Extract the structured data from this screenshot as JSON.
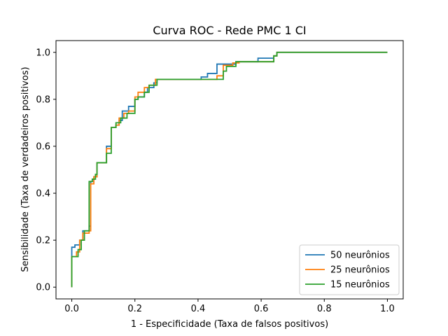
{
  "chart_data": {
    "type": "line",
    "title": "Curva ROC - Rede PMC 1 CI",
    "xlabel": "1 - Especificidade (Taxa de falsos positivos)",
    "ylabel": "Sensibilidade (Taxa de verdadeiros positivos)",
    "xlim": [
      -0.05,
      1.05
    ],
    "ylim": [
      -0.05,
      1.05
    ],
    "xticks": [
      "0.0",
      "0.2",
      "0.4",
      "0.6",
      "0.8",
      "1.0"
    ],
    "yticks": [
      "0.0",
      "0.2",
      "0.4",
      "0.6",
      "0.8",
      "1.0"
    ],
    "grid": false,
    "legend_position": "lower-right",
    "series": [
      {
        "name": "50 neurônios",
        "color": "#1f77b4",
        "x": [
          0.0,
          0.0,
          0.0,
          0.01,
          0.01,
          0.025,
          0.025,
          0.035,
          0.035,
          0.055,
          0.055,
          0.06,
          0.06,
          0.07,
          0.07,
          0.08,
          0.08,
          0.11,
          0.11,
          0.125,
          0.125,
          0.14,
          0.14,
          0.15,
          0.15,
          0.16,
          0.16,
          0.18,
          0.18,
          0.2,
          0.2,
          0.21,
          0.21,
          0.23,
          0.23,
          0.24,
          0.24,
          0.26,
          0.26,
          0.27,
          0.27,
          0.41,
          0.41,
          0.43,
          0.43,
          0.46,
          0.46,
          0.52,
          0.52,
          0.59,
          0.59,
          0.64,
          0.64,
          0.65,
          0.65,
          1.0
        ],
        "y": [
          0.0,
          0.13,
          0.17,
          0.17,
          0.18,
          0.18,
          0.2,
          0.2,
          0.24,
          0.24,
          0.26,
          0.26,
          0.45,
          0.45,
          0.47,
          0.47,
          0.53,
          0.53,
          0.6,
          0.6,
          0.68,
          0.68,
          0.69,
          0.69,
          0.71,
          0.71,
          0.75,
          0.75,
          0.77,
          0.77,
          0.8,
          0.8,
          0.81,
          0.81,
          0.83,
          0.83,
          0.85,
          0.85,
          0.87,
          0.87,
          0.885,
          0.885,
          0.895,
          0.895,
          0.91,
          0.91,
          0.95,
          0.95,
          0.96,
          0.96,
          0.975,
          0.975,
          0.985,
          0.985,
          1.0,
          1.0
        ]
      },
      {
        "name": "25 neurônios",
        "color": "#ff7f0e",
        "x": [
          0.0,
          0.0,
          0.015,
          0.015,
          0.025,
          0.025,
          0.035,
          0.035,
          0.055,
          0.055,
          0.06,
          0.06,
          0.07,
          0.07,
          0.08,
          0.08,
          0.11,
          0.11,
          0.125,
          0.125,
          0.14,
          0.14,
          0.15,
          0.15,
          0.165,
          0.165,
          0.18,
          0.18,
          0.2,
          0.2,
          0.21,
          0.21,
          0.23,
          0.23,
          0.245,
          0.245,
          0.265,
          0.265,
          0.275,
          0.275,
          0.46,
          0.46,
          0.48,
          0.48,
          0.51,
          0.51,
          0.53,
          0.53,
          0.64,
          0.64,
          0.65,
          0.65,
          1.0
        ],
        "y": [
          0.0,
          0.13,
          0.13,
          0.15,
          0.15,
          0.2,
          0.2,
          0.23,
          0.23,
          0.24,
          0.24,
          0.44,
          0.44,
          0.47,
          0.47,
          0.53,
          0.53,
          0.59,
          0.59,
          0.68,
          0.68,
          0.69,
          0.69,
          0.72,
          0.72,
          0.74,
          0.74,
          0.75,
          0.75,
          0.81,
          0.81,
          0.83,
          0.83,
          0.85,
          0.85,
          0.86,
          0.86,
          0.885,
          0.885,
          0.885,
          0.885,
          0.9,
          0.9,
          0.945,
          0.945,
          0.955,
          0.955,
          0.96,
          0.96,
          0.985,
          0.985,
          1.0,
          1.0
        ]
      },
      {
        "name": "15 neurônios",
        "color": "#2ca02c",
        "x": [
          0.0,
          0.0,
          0.02,
          0.02,
          0.03,
          0.03,
          0.04,
          0.04,
          0.055,
          0.055,
          0.065,
          0.065,
          0.075,
          0.075,
          0.08,
          0.08,
          0.11,
          0.11,
          0.125,
          0.125,
          0.14,
          0.14,
          0.155,
          0.155,
          0.175,
          0.175,
          0.2,
          0.2,
          0.21,
          0.21,
          0.23,
          0.23,
          0.245,
          0.245,
          0.27,
          0.27,
          0.48,
          0.48,
          0.49,
          0.49,
          0.52,
          0.52,
          0.64,
          0.64,
          0.65,
          0.65,
          1.0
        ],
        "y": [
          0.0,
          0.13,
          0.13,
          0.16,
          0.16,
          0.2,
          0.2,
          0.24,
          0.24,
          0.45,
          0.45,
          0.46,
          0.46,
          0.48,
          0.48,
          0.53,
          0.53,
          0.57,
          0.57,
          0.68,
          0.68,
          0.7,
          0.7,
          0.72,
          0.72,
          0.74,
          0.74,
          0.8,
          0.8,
          0.81,
          0.81,
          0.83,
          0.83,
          0.86,
          0.86,
          0.885,
          0.885,
          0.92,
          0.92,
          0.94,
          0.94,
          0.96,
          0.96,
          0.985,
          0.985,
          1.0,
          1.0
        ]
      }
    ]
  }
}
